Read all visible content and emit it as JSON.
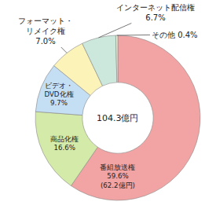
{
  "chart_data": {
    "type": "pie",
    "categories": [
      "番組放送権",
      "商品化権",
      "ビデオ・\nDVD化権",
      "フォーマット・\nリメイク権",
      "インターネット配信権",
      "その他"
    ],
    "values": [
      59.6,
      16.6,
      9.7,
      7.0,
      6.7,
      0.4
    ],
    "value_labels": [
      "59.6%\n(62.2億円)",
      "16.6%",
      "9.7%",
      "7.0%",
      "6.7%",
      "0.4%"
    ],
    "colors": [
      "#f2a3a3",
      "#d3eaa8",
      "#c4def4",
      "#fbf3b8",
      "#cce8dc",
      "#e6eed6"
    ],
    "data_labels": true,
    "annotations": [
      {
        "text": "104.3億円"
      }
    ]
  }
}
